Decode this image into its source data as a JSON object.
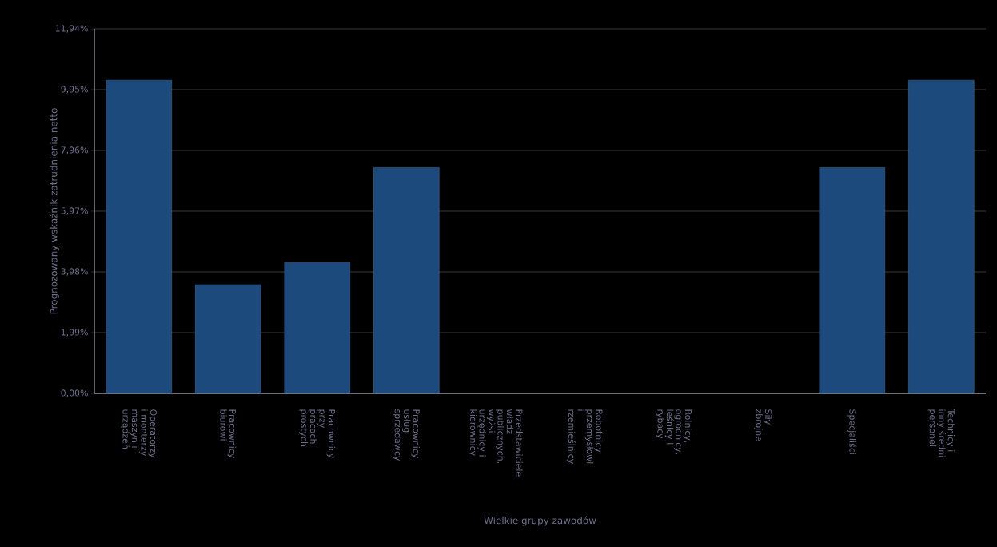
{
  "chart_data": {
    "type": "bar",
    "xlabel": "Wielkie grupy zawodów",
    "ylabel": "Prognozowany wskaźnik zatrudnienia netto",
    "categories": [
      "Operatorzy i monterzy maszyn i urządzeń",
      "Pracownicy biurowi",
      "Pracownicy przy pracach prostych",
      "Pracownicy usług i sprzedawcy",
      "Przedstawiciele władz publicznych, wyżsi urzędnicy i kierownicy",
      "Robotnicy przemysłowi i rzemieślnicy",
      "Rolnicy, ogrodnicy, leśnicy i rybacy",
      "Siły zbrojne",
      "Specjaliści",
      "Technicy i inny średni personel"
    ],
    "values": [
      10.26,
      3.56,
      4.29,
      7.4,
      null,
      null,
      null,
      null,
      7.4,
      10.26
    ],
    "color": "#1d4a7c",
    "ylim": [
      0,
      11.94
    ],
    "yticks": [
      {
        "value": 0,
        "label": "0,00%"
      },
      {
        "value": 1.99,
        "label": "1,99%"
      },
      {
        "value": 3.98,
        "label": "3,98%"
      },
      {
        "value": 5.97,
        "label": "5,97%"
      },
      {
        "value": 7.96,
        "label": "7,96%"
      },
      {
        "value": 9.95,
        "label": "9,95%"
      },
      {
        "value": 11.94,
        "label": "11,94%"
      }
    ],
    "grid": "y"
  }
}
